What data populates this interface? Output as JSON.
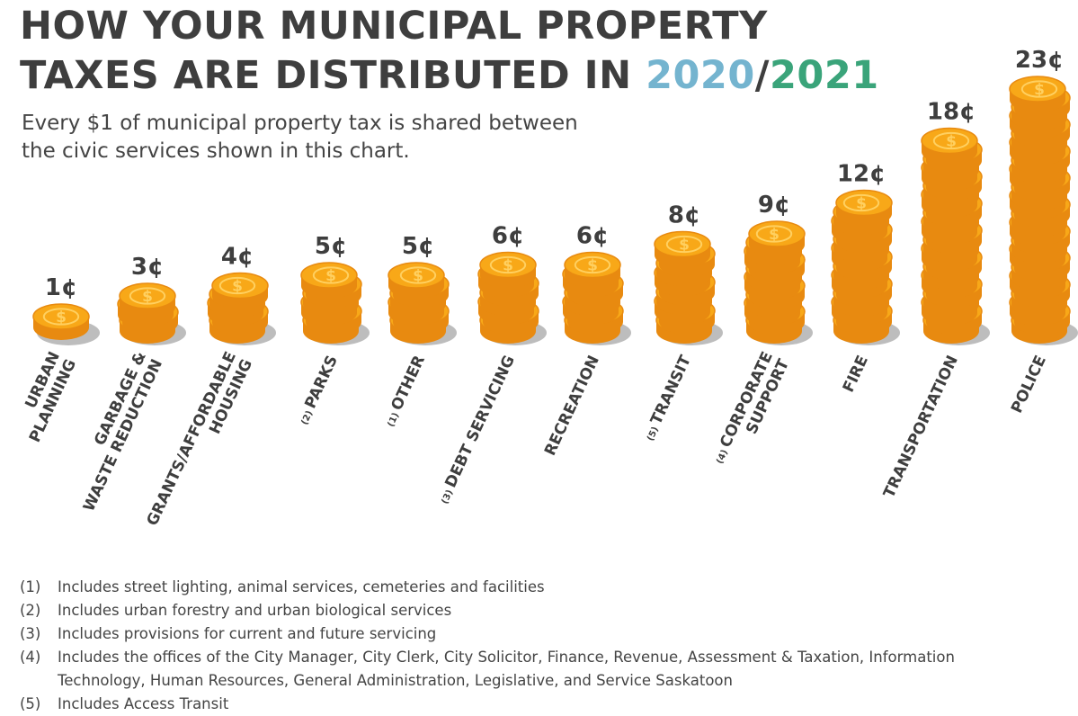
{
  "header": {
    "title_line1": "HOW YOUR MUNICIPAL PROPERTY",
    "title_line2_prefix": "TAXES ARE DISTRIBUTED IN ",
    "title_year1": "2020",
    "title_slash": "/",
    "title_year2": "2021",
    "subtitle": "Every $1 of municipal property tax is shared between the civic services shown in this chart."
  },
  "colors": {
    "title": "#3e3e3e",
    "year1": "#74b4cf",
    "year2": "#3aa47a",
    "coin_face": "#f8a818",
    "coin_edge": "#e88a10",
    "coin_symbol": "#ffd060",
    "shadow": "#bdbdbd"
  },
  "chart_data": {
    "type": "bar",
    "unit_suffix": "¢",
    "categories": [
      {
        "mark": "",
        "lines": [
          "URBAN",
          "PLANNING"
        ]
      },
      {
        "mark": "",
        "lines": [
          "GARBAGE &",
          "WASTE REDUCTION"
        ]
      },
      {
        "mark": "",
        "lines": [
          "GRANTS/AFFORDABLE",
          "HOUSING"
        ]
      },
      {
        "mark": "(2)",
        "lines": [
          "PARKS"
        ]
      },
      {
        "mark": "(1)",
        "lines": [
          "OTHER"
        ]
      },
      {
        "mark": "(3)",
        "lines": [
          "DEBT SERVICING"
        ]
      },
      {
        "mark": "",
        "lines": [
          "RECREATION"
        ]
      },
      {
        "mark": "(5)",
        "lines": [
          "TRANSIT"
        ]
      },
      {
        "mark": "(4)",
        "lines": [
          "CORPORATE",
          "SUPPORT"
        ]
      },
      {
        "mark": "",
        "lines": [
          "FIRE"
        ]
      },
      {
        "mark": "",
        "lines": [
          "TRANSPORTATION"
        ]
      },
      {
        "mark": "",
        "lines": [
          "POLICE"
        ]
      }
    ],
    "values": [
      1,
      3,
      4,
      5,
      5,
      6,
      6,
      8,
      9,
      12,
      18,
      23
    ]
  },
  "footnotes": [
    {
      "mark": "(1)",
      "text": "Includes street lighting, animal services, cemeteries and facilities"
    },
    {
      "mark": "(2)",
      "text": "Includes urban forestry and urban biological services"
    },
    {
      "mark": "(3)",
      "text": "Includes provisions for current and future servicing"
    },
    {
      "mark": "(4)",
      "text": "Includes the offices of the City Manager, City Clerk, City Solicitor, Finance, Revenue, Assessment & Taxation, Information Technology, Human Resources, General Administration, Legislative, and Service Saskatoon"
    },
    {
      "mark": "(5)",
      "text": "Includes Access Transit"
    }
  ]
}
